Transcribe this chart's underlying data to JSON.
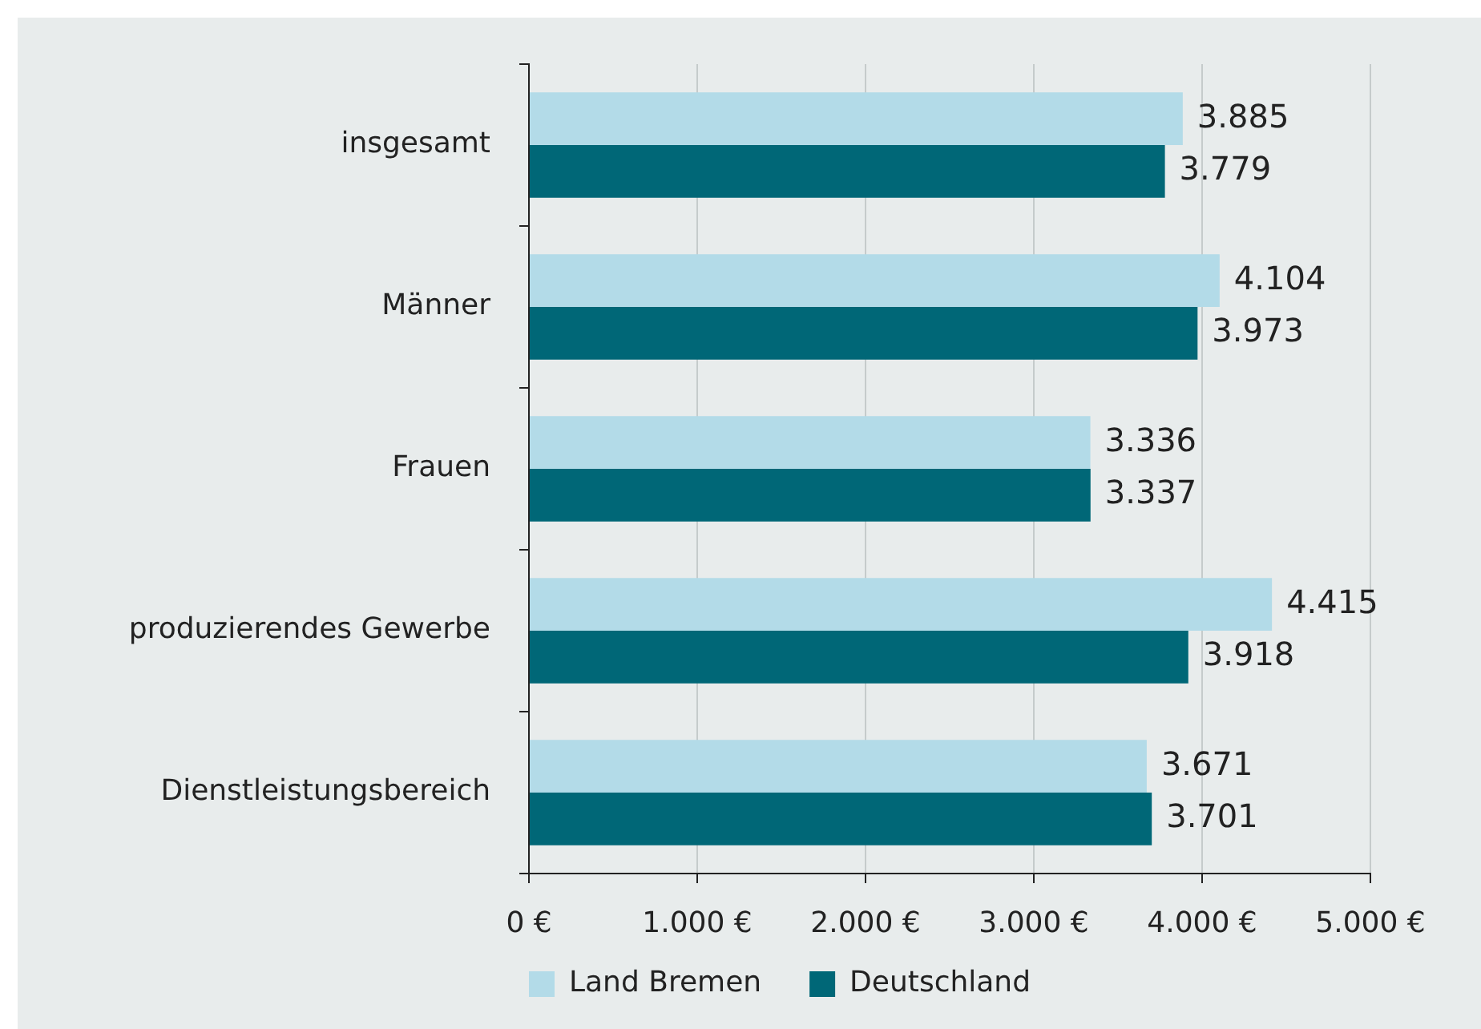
{
  "chart_data": {
    "type": "bar",
    "orientation": "horizontal",
    "categories": [
      "insgesamt",
      "Männer",
      "Frauen",
      "produzierendes Gewerbe",
      "Dienstleistungsbereich"
    ],
    "series": [
      {
        "name": "Land Bremen",
        "color": "#b3dbe8",
        "values": [
          3885,
          4104,
          3336,
          4415,
          3671
        ],
        "value_labels": [
          "3.885",
          "4.104",
          "3.336",
          "4.415",
          "3.671"
        ]
      },
      {
        "name": "Deutschland",
        "color": "#006777",
        "values": [
          3779,
          3973,
          3337,
          3918,
          3701
        ],
        "value_labels": [
          "3.779",
          "3.973",
          "3.337",
          "3.918",
          "3.701"
        ]
      }
    ],
    "xlim": [
      0,
      5000
    ],
    "xticks": [
      {
        "value": 0,
        "label": "0 €"
      },
      {
        "value": 1000,
        "label": "1.000 €"
      },
      {
        "value": 2000,
        "label": "2.000 €"
      },
      {
        "value": 3000,
        "label": "3.000 €"
      },
      {
        "value": 4000,
        "label": "4.000 €"
      },
      {
        "value": 5000,
        "label": "5.000 €"
      }
    ],
    "grid": "x",
    "legend": "bottom left"
  }
}
